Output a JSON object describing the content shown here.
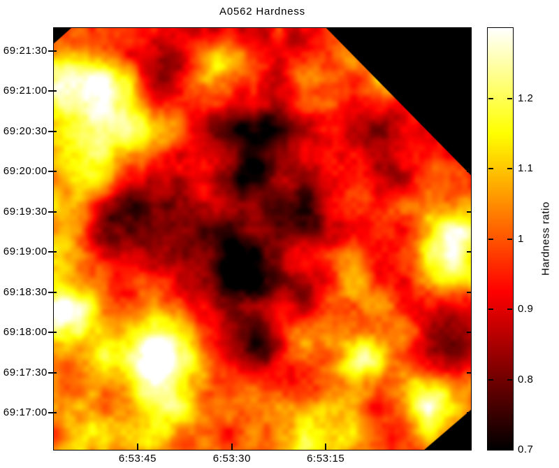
{
  "figure": {
    "background": "#ffffff",
    "text_color": "#000000"
  },
  "chart_data": {
    "type": "heatmap",
    "title": "A0562 Hardness",
    "xlabel": "",
    "ylabel": "",
    "grid": false,
    "x_axis": {
      "ticks": [
        {
          "label": "6:53:45",
          "pos": 0.201
        },
        {
          "label": "6:53:30",
          "pos": 0.427
        },
        {
          "label": "6:53:15",
          "pos": 0.652
        }
      ]
    },
    "y_axis": {
      "ticks": [
        {
          "label": "69:21:30",
          "pos": 0.0547
        },
        {
          "label": "69:21:00",
          "pos": 0.15
        },
        {
          "label": "69:20:30",
          "pos": 0.2452
        },
        {
          "label": "69:20:00",
          "pos": 0.3405
        },
        {
          "label": "69:19:30",
          "pos": 0.4358
        },
        {
          "label": "69:19:00",
          "pos": 0.531
        },
        {
          "label": "69:18:30",
          "pos": 0.6263
        },
        {
          "label": "69:18:00",
          "pos": 0.7216
        },
        {
          "label": "69:17:30",
          "pos": 0.8168
        },
        {
          "label": "69:17:00",
          "pos": 0.9121
        }
      ]
    },
    "colorbar": {
      "label": "Hardness ratio",
      "vmin": 0.7,
      "vmax": 1.3,
      "colormap": "hot",
      "ticks": [
        {
          "label": "1.2",
          "value": 1.2
        },
        {
          "label": "1.1",
          "value": 1.1
        },
        {
          "label": "1",
          "value": 1.0
        },
        {
          "label": "0.9",
          "value": 0.9
        },
        {
          "label": "0.8",
          "value": 0.8
        },
        {
          "label": "0.7",
          "value": 0.7
        }
      ]
    },
    "map": {
      "base_level": 0.98,
      "noise": {
        "seed": 11,
        "octaves": [
          {
            "period": 0.24,
            "amp": 0.095
          },
          {
            "period": 0.12,
            "amp": 0.075
          },
          {
            "period": 0.06,
            "amp": 0.055
          },
          {
            "period": 0.03,
            "amp": 0.035
          },
          {
            "period": 0.015,
            "amp": 0.02
          }
        ]
      },
      "features": [
        {
          "kind": "dark",
          "x": 0.49,
          "y": 0.249,
          "sigma": 0.085,
          "amp": -0.22
        },
        {
          "kind": "dark",
          "x": 0.29,
          "y": 0.11,
          "sigma": 0.055,
          "amp": -0.15
        },
        {
          "kind": "dark",
          "x": 0.18,
          "y": 0.44,
          "sigma": 0.085,
          "amp": -0.2
        },
        {
          "kind": "dark",
          "x": 0.457,
          "y": 0.57,
          "sigma": 0.065,
          "amp": -0.22
        },
        {
          "kind": "dark",
          "x": 0.61,
          "y": 0.43,
          "sigma": 0.05,
          "amp": -0.13
        },
        {
          "kind": "dark",
          "x": 0.491,
          "y": 0.763,
          "sigma": 0.05,
          "amp": -0.22
        },
        {
          "kind": "dark",
          "x": 0.943,
          "y": 0.741,
          "sigma": 0.055,
          "amp": -0.2
        },
        {
          "kind": "dark",
          "x": 0.76,
          "y": 0.265,
          "sigma": 0.07,
          "amp": -0.16
        },
        {
          "kind": "dark",
          "x": 0.156,
          "y": 0.887,
          "sigma": 0.045,
          "amp": -0.12
        },
        {
          "kind": "dark",
          "x": 0.608,
          "y": 0.647,
          "sigma": 0.045,
          "amp": -0.12
        },
        {
          "kind": "dark",
          "x": 0.54,
          "y": 0.4,
          "sigma": 0.16,
          "amp": -0.08
        },
        {
          "kind": "bright",
          "x": 0.248,
          "y": 0.805,
          "sigma": 0.075,
          "amp": 0.32
        },
        {
          "kind": "bright",
          "x": 0.047,
          "y": 0.125,
          "sigma": 0.065,
          "amp": 0.28
        },
        {
          "kind": "bright",
          "x": 0.139,
          "y": 0.166,
          "sigma": 0.05,
          "amp": 0.16
        },
        {
          "kind": "bright",
          "x": 0.03,
          "y": 0.68,
          "sigma": 0.055,
          "amp": 0.22
        },
        {
          "kind": "bright",
          "x": 0.4,
          "y": 0.1,
          "sigma": 0.048,
          "amp": 0.18
        },
        {
          "kind": "bright",
          "x": 0.96,
          "y": 0.515,
          "sigma": 0.065,
          "amp": 0.22
        },
        {
          "kind": "bright",
          "x": 0.901,
          "y": 0.895,
          "sigma": 0.055,
          "amp": 0.26
        },
        {
          "kind": "bright",
          "x": 0.742,
          "y": 0.786,
          "sigma": 0.038,
          "amp": 0.18
        },
        {
          "kind": "bright",
          "x": 0.658,
          "y": 0.97,
          "sigma": 0.06,
          "amp": 0.16
        },
        {
          "kind": "bright",
          "x": 0.089,
          "y": 0.29,
          "sigma": 0.06,
          "amp": 0.18
        },
        {
          "kind": "bright",
          "x": 0.45,
          "y": 1.02,
          "sigma": 0.22,
          "amp": 0.1
        },
        {
          "kind": "bright",
          "x": -0.02,
          "y": 0.4,
          "sigma": 0.15,
          "amp": 0.1
        }
      ],
      "masked_corners": [
        [
          [
            0,
            0
          ],
          [
            0.042,
            0
          ],
          [
            0,
            0.037
          ]
        ],
        [
          [
            0.653,
            0
          ],
          [
            1,
            0
          ],
          [
            1,
            0.349
          ]
        ],
        [
          [
            1,
            0.905
          ],
          [
            1,
            1
          ],
          [
            0.888,
            1
          ]
        ]
      ]
    }
  }
}
